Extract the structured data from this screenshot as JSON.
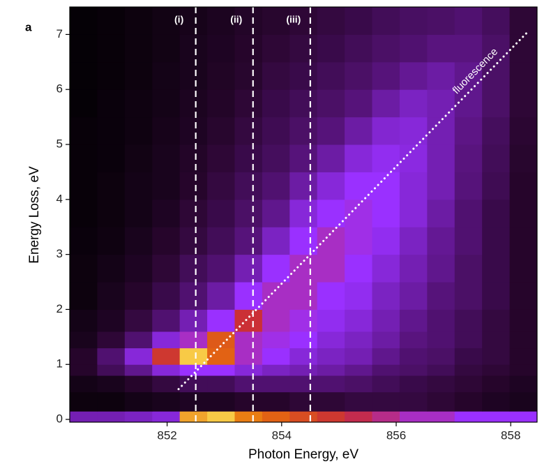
{
  "chart_data": {
    "type": "heatmap",
    "panel_label": "a",
    "x_label": "Photon Energy, eV",
    "y_label": "Energy Loss, eV",
    "xlim": [
      850.3,
      858.46
    ],
    "ylim": [
      -0.05,
      7.5
    ],
    "xticks": [
      852,
      854,
      856,
      858
    ],
    "yticks": [
      0,
      1,
      2,
      3,
      4,
      5,
      6,
      7
    ],
    "xbins": [
      850.3,
      850.78,
      851.26,
      851.74,
      852.22,
      852.7,
      853.18,
      853.66,
      854.14,
      854.62,
      855.1,
      855.58,
      856.06,
      856.54,
      857.02,
      857.5,
      857.98,
      858.46
    ],
    "ybins": [
      -0.05,
      0.15,
      0.5,
      0.8,
      1.0,
      1.3,
      1.6,
      2.0,
      2.5,
      3.0,
      3.5,
      4.0,
      4.5,
      5.0,
      5.5,
      6.0,
      6.5,
      7.0,
      7.5
    ],
    "zlim": [
      0,
      1
    ],
    "colormap": [
      "#000000",
      "#2a0630",
      "#5a1480",
      "#9a30ff",
      "#c82a3a",
      "#e8700a",
      "#fff060"
    ],
    "z": [
      [
        0.4,
        0.4,
        0.42,
        0.45,
        0.9,
        0.95,
        0.85,
        0.8,
        0.75,
        0.7,
        0.65,
        0.6,
        0.55,
        0.55,
        0.5,
        0.5,
        0.5
      ],
      [
        0.05,
        0.05,
        0.08,
        0.1,
        0.12,
        0.12,
        0.15,
        0.15,
        0.18,
        0.18,
        0.2,
        0.2,
        0.2,
        0.18,
        0.15,
        0.12,
        0.1
      ],
      [
        0.08,
        0.1,
        0.15,
        0.2,
        0.25,
        0.25,
        0.3,
        0.3,
        0.3,
        0.3,
        0.28,
        0.25,
        0.22,
        0.2,
        0.18,
        0.15,
        0.12
      ],
      [
        0.15,
        0.25,
        0.35,
        0.45,
        0.5,
        0.5,
        0.45,
        0.42,
        0.4,
        0.38,
        0.35,
        0.3,
        0.28,
        0.25,
        0.2,
        0.18,
        0.15
      ],
      [
        0.15,
        0.3,
        0.45,
        0.7,
        0.95,
        0.8,
        0.55,
        0.5,
        0.45,
        0.42,
        0.4,
        0.35,
        0.3,
        0.28,
        0.22,
        0.2,
        0.15
      ],
      [
        0.1,
        0.18,
        0.3,
        0.45,
        0.55,
        0.78,
        0.55,
        0.52,
        0.5,
        0.45,
        0.42,
        0.38,
        0.33,
        0.3,
        0.25,
        0.2,
        0.15
      ],
      [
        0.08,
        0.12,
        0.2,
        0.3,
        0.4,
        0.5,
        0.68,
        0.55,
        0.52,
        0.48,
        0.45,
        0.4,
        0.35,
        0.3,
        0.25,
        0.2,
        0.15
      ],
      [
        0.05,
        0.1,
        0.15,
        0.22,
        0.3,
        0.38,
        0.5,
        0.55,
        0.55,
        0.5,
        0.48,
        0.42,
        0.38,
        0.32,
        0.28,
        0.22,
        0.15
      ],
      [
        0.05,
        0.08,
        0.12,
        0.18,
        0.25,
        0.3,
        0.4,
        0.5,
        0.55,
        0.55,
        0.5,
        0.45,
        0.4,
        0.35,
        0.28,
        0.22,
        0.15
      ],
      [
        0.04,
        0.06,
        0.1,
        0.15,
        0.2,
        0.25,
        0.32,
        0.42,
        0.5,
        0.55,
        0.52,
        0.48,
        0.42,
        0.36,
        0.3,
        0.22,
        0.15
      ],
      [
        0.03,
        0.05,
        0.08,
        0.12,
        0.18,
        0.22,
        0.28,
        0.35,
        0.45,
        0.5,
        0.52,
        0.5,
        0.45,
        0.38,
        0.3,
        0.22,
        0.15
      ],
      [
        0.03,
        0.05,
        0.08,
        0.1,
        0.15,
        0.2,
        0.25,
        0.3,
        0.38,
        0.45,
        0.5,
        0.5,
        0.45,
        0.4,
        0.32,
        0.24,
        0.15
      ],
      [
        0.03,
        0.04,
        0.07,
        0.1,
        0.14,
        0.18,
        0.22,
        0.26,
        0.32,
        0.38,
        0.45,
        0.48,
        0.46,
        0.4,
        0.33,
        0.25,
        0.16
      ],
      [
        0.03,
        0.04,
        0.06,
        0.09,
        0.12,
        0.16,
        0.2,
        0.24,
        0.28,
        0.32,
        0.38,
        0.44,
        0.45,
        0.4,
        0.34,
        0.26,
        0.17
      ],
      [
        0.02,
        0.04,
        0.06,
        0.08,
        0.11,
        0.14,
        0.18,
        0.22,
        0.25,
        0.28,
        0.32,
        0.38,
        0.42,
        0.4,
        0.35,
        0.28,
        0.18
      ],
      [
        0.02,
        0.03,
        0.05,
        0.08,
        0.1,
        0.13,
        0.16,
        0.2,
        0.22,
        0.25,
        0.28,
        0.32,
        0.36,
        0.38,
        0.35,
        0.28,
        0.18
      ],
      [
        0.02,
        0.03,
        0.05,
        0.07,
        0.1,
        0.12,
        0.15,
        0.18,
        0.2,
        0.22,
        0.25,
        0.28,
        0.3,
        0.33,
        0.33,
        0.28,
        0.18
      ],
      [
        0.02,
        0.03,
        0.05,
        0.07,
        0.09,
        0.11,
        0.14,
        0.16,
        0.18,
        0.2,
        0.22,
        0.25,
        0.27,
        0.28,
        0.3,
        0.26,
        0.18
      ]
    ],
    "markers": [
      {
        "x": 852.5,
        "label": "(i)"
      },
      {
        "x": 853.5,
        "label": "(ii)"
      },
      {
        "x": 854.5,
        "label": "(iii)"
      }
    ],
    "guide": {
      "label": "fluorescence",
      "x": [
        852.2,
        858.3
      ],
      "y": [
        0.55,
        7.05
      ]
    }
  }
}
